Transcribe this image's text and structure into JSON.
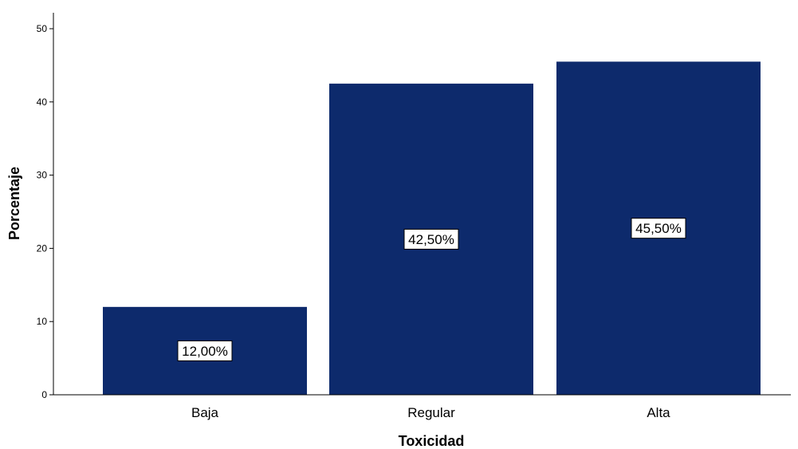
{
  "chart_data": {
    "type": "bar",
    "title": "",
    "xlabel": "Toxicidad",
    "ylabel": "Porcentaje",
    "categories": [
      "Baja",
      "Regular",
      "Alta"
    ],
    "values": [
      12.0,
      42.5,
      45.5
    ],
    "data_labels": [
      "12,00%",
      "42,50%",
      "45,50%"
    ],
    "ylim": [
      0,
      50
    ],
    "yticks": [
      0,
      10,
      20,
      30,
      40,
      50
    ],
    "grid": false,
    "legend": "none",
    "bar_color": "#0d2a6c"
  }
}
